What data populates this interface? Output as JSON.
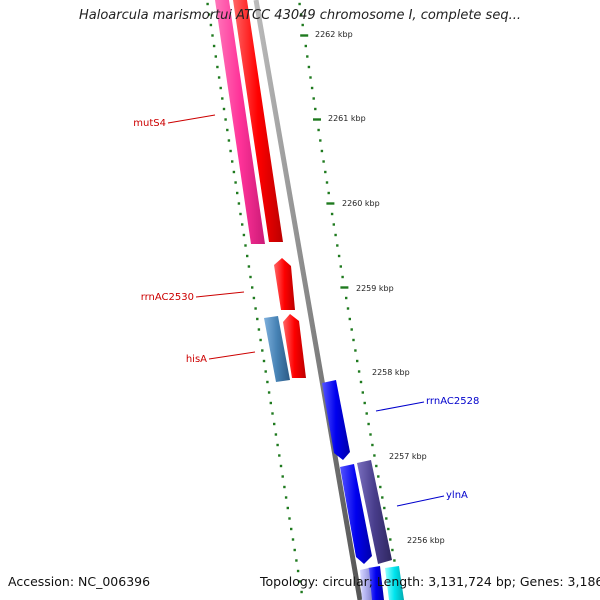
{
  "title": "Haloarcula marismortui ATCC 43049 chromosome I, complete seq...",
  "footer": {
    "accession": "Accession: NC_006396",
    "topology": "Topology: circular; Length: 3,131,724 bp; Genes: 3,186"
  },
  "colors": {
    "background": "#ffffff",
    "backbone": "#888888",
    "tick": "#1f7a1f",
    "forward_label": "#cc0000",
    "reverse_label": "#0000cc"
  },
  "ticks": [
    "2262 kbp",
    "2261 kbp",
    "2260 kbp",
    "2259 kbp",
    "2258 kbp",
    "2257 kbp",
    "2256 kbp"
  ],
  "genes": [
    {
      "name": "mutS4",
      "color": "#ff3399",
      "strand": "+"
    },
    {
      "name": "rrnAC2530",
      "color": "#ff0000",
      "strand": "+"
    },
    {
      "name": "hisA",
      "color": "#4682b4",
      "strand": "+"
    },
    {
      "name": "rrnAC2528",
      "color": "#0000ee",
      "strand": "-"
    },
    {
      "name": "ylnA",
      "color": "#483d8b",
      "strand": "-"
    }
  ]
}
